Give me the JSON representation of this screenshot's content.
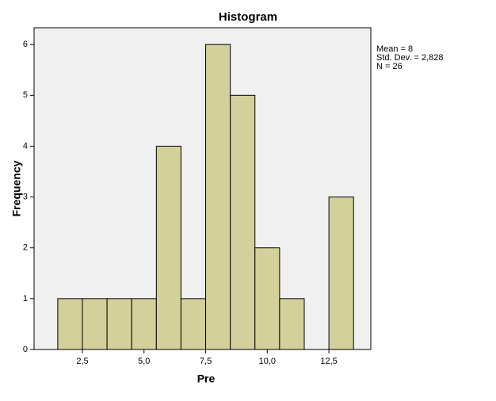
{
  "chart_data": {
    "type": "histogram",
    "title": "Histogram",
    "x_label": "Pre",
    "y_label": "Frequency",
    "bins": [
      1.5,
      2.5,
      3.5,
      4.5,
      5.5,
      6.5,
      7.5,
      8.5,
      9.5,
      10.5,
      11.5,
      12.5,
      13.5
    ],
    "values": [
      1,
      1,
      1,
      1,
      4,
      1,
      6,
      5,
      2,
      1,
      0,
      3
    ],
    "color": "#d4d09c",
    "xlim": [
      0.54,
      14.2
    ],
    "xticks": [
      {
        "value": 2.5,
        "label": "2,5"
      },
      {
        "value": 5.0,
        "label": "5,0"
      },
      {
        "value": 7.5,
        "label": "7,5"
      },
      {
        "value": 10.0,
        "label": "10,0"
      },
      {
        "value": 12.5,
        "label": "12,5"
      }
    ],
    "ylim": [
      0,
      6.33
    ],
    "yticks": [
      0,
      1,
      2,
      3,
      4,
      5,
      6
    ],
    "stats": [
      "Mean = 8",
      "Std. Dev. = 2,828",
      "N = 26"
    ]
  }
}
